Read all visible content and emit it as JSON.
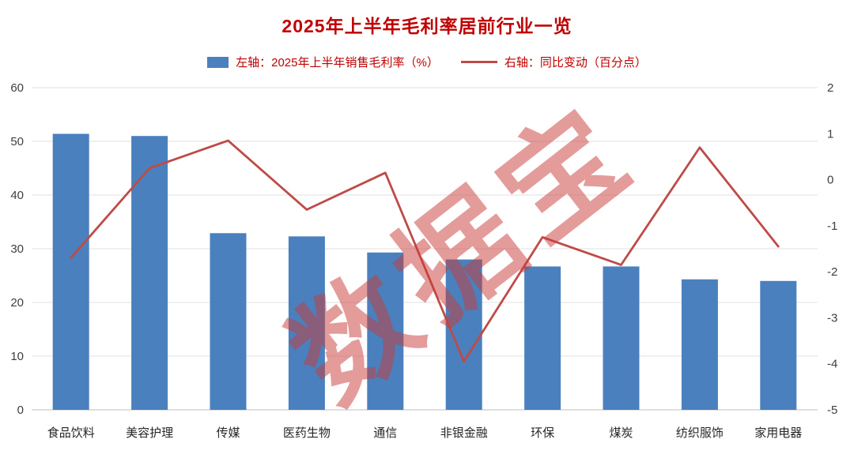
{
  "title": "2025年上半年毛利率居前行业一览",
  "watermark": {
    "text": "数据宝"
  },
  "legend": [
    {
      "type": "bar",
      "label": "左轴：2025年上半年销售毛利率（%）"
    },
    {
      "type": "line",
      "label": "右轴：同比变动（百分点）"
    }
  ],
  "colors": {
    "title_text": "#c00000",
    "legend_text": "#c00000",
    "bar": "#4a80bd",
    "line": "#be4b48",
    "axis_text": "#404040",
    "category_text": "#262626",
    "grid": "#e2e2e2",
    "axis_line": "#bfbfbf",
    "watermark": "rgba(202,58,55,0.5)"
  },
  "chart_data": {
    "type": "bar",
    "subtype": "bar+line combo, dual axis",
    "title": "2025年上半年毛利率居前行业一览",
    "categories": [
      "食品饮料",
      "美容护理",
      "传媒",
      "医药生物",
      "通信",
      "非银金融",
      "环保",
      "煤炭",
      "纺织服饰",
      "家用电器"
    ],
    "series": [
      {
        "name": "左轴：2025年上半年销售毛利率（%）",
        "type": "bar",
        "axis": "left",
        "values": [
          51.4,
          51.0,
          32.9,
          32.3,
          29.3,
          28.0,
          26.7,
          26.7,
          24.3,
          24.0
        ]
      },
      {
        "name": "右轴：同比变动（百分点）",
        "type": "line",
        "axis": "right",
        "values": [
          -1.7,
          0.25,
          0.85,
          -0.65,
          0.15,
          -3.95,
          -1.25,
          -1.85,
          0.7,
          -1.45
        ]
      }
    ],
    "left_axis": {
      "range": [
        0,
        60
      ],
      "ticks": [
        0,
        10,
        20,
        30,
        40,
        50,
        60
      ]
    },
    "right_axis": {
      "range": [
        -5,
        2
      ],
      "ticks": [
        -5,
        -4,
        -3,
        -2,
        -1,
        0,
        1,
        2
      ]
    },
    "grid": true,
    "legend_position": "top"
  }
}
